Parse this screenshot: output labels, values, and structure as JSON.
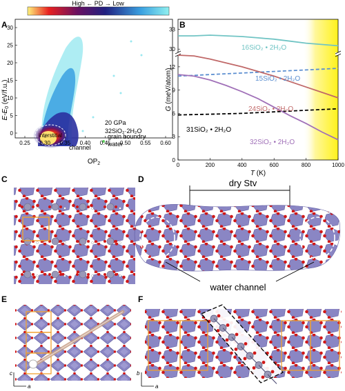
{
  "panels": {
    "A": {
      "label": "A",
      "colorbar_label": "High ← PD → Low",
      "x_label": "OP",
      "x_label_sub": "2",
      "y_label": "E-E",
      "y_label_sub": "0",
      "y_label_unit": " (eV/f.u.)",
      "x_ticks": [
        "0.25",
        "0.30",
        "0.35",
        "0.40",
        "0.45",
        "0.50",
        "0.55",
        "0.60"
      ],
      "y_ticks": [
        "0",
        "5",
        "10",
        "15",
        "20",
        "25",
        "30"
      ],
      "annotation_pressure": "20 GPa",
      "annotation_formula": "32SiO₂·2H₂O",
      "annotation_interstitial": "interstitial",
      "annotation_channel": "channel",
      "annotation_grain_1": "grain boundry",
      "annotation_grain_2": "water"
    },
    "B": {
      "label": "B"
    },
    "C": {
      "label": "C"
    },
    "D": {
      "label": "D",
      "top_label": "dry Stv",
      "bottom_label": "water channel"
    },
    "E": {
      "label": "E",
      "axis_c": "c",
      "axis_a": "a"
    },
    "F": {
      "label": "F",
      "axis_b": "b",
      "axis_a": "a"
    }
  },
  "colors": {
    "polyhedron": "#8a86c4",
    "oxygen": "#d01818",
    "silicon": "#9a98b8",
    "cell": "#f0a030",
    "highlight": "#fff57a"
  },
  "chart_data": [
    {
      "type": "line",
      "panel": "B",
      "xlabel": "T (K)",
      "ylabel": "G (meV/atom)",
      "x_ticks": [
        0,
        200,
        400,
        600,
        800,
        1000
      ],
      "y_ticks_lower": [
        0,
        3,
        6,
        9,
        12
      ],
      "y_ticks_upper": [
        30,
        33
      ],
      "xlim": [
        0,
        1000
      ],
      "ylim_lower": [
        0,
        13.5
      ],
      "ylim_upper": [
        29.5,
        34.5
      ],
      "shaded_region_x": [
        780,
        1000
      ],
      "series": [
        {
          "name": "16SiO₂·2H₂O",
          "color": "#70c4c4",
          "dash": false,
          "x": [
            0,
            100,
            200,
            300,
            400,
            500,
            600,
            700,
            800,
            900,
            1000
          ],
          "y": [
            32.0,
            32.0,
            32.1,
            32.0,
            31.9,
            31.7,
            31.5,
            31.2,
            30.9,
            30.7,
            30.5
          ]
        },
        {
          "name": "15SiO₂·2H₂O",
          "color": "#5b8ed0",
          "dash": true,
          "x": [
            0,
            200,
            400,
            600,
            800,
            1000
          ],
          "y": [
            10.8,
            11.0,
            11.2,
            11.4,
            11.6,
            11.8
          ]
        },
        {
          "name": "24SiO₂·2H₂O",
          "color": "#c06868",
          "dash": false,
          "x": [
            0,
            100,
            200,
            300,
            400,
            500,
            600,
            700,
            800,
            900,
            1000
          ],
          "y": [
            13.5,
            13.4,
            13.0,
            12.5,
            12.0,
            11.4,
            10.8,
            10.1,
            9.4,
            8.7,
            8.0
          ]
        },
        {
          "name": "31SiO₂·2H₂O",
          "color": "#000000",
          "dash": true,
          "x": [
            0,
            200,
            400,
            600,
            800,
            1000
          ],
          "y": [
            5.8,
            5.9,
            6.0,
            6.2,
            6.4,
            6.6
          ]
        },
        {
          "name": "32SiO₂·2H₂O",
          "color": "#a070b8",
          "dash": false,
          "x": [
            0,
            100,
            200,
            300,
            400,
            500,
            600,
            700,
            800,
            900,
            1000
          ],
          "y": [
            11.0,
            10.8,
            10.3,
            9.6,
            8.8,
            7.9,
            6.8,
            5.7,
            4.7,
            3.6,
            2.6
          ]
        }
      ],
      "series_labels": [
        {
          "name": "16SiO₂ • 2H₂O",
          "color": "#70c4c4"
        },
        {
          "name": "15SiO₂ • 2H₂O",
          "color": "#5b8ed0"
        },
        {
          "name": "24SiO₂ • 2H₂O",
          "color": "#c06868"
        },
        {
          "name": "31SiO₂ • 2H₂O",
          "color": "#000000"
        },
        {
          "name": "32SiO₂ • 2H₂O",
          "color": "#a070b8"
        }
      ]
    }
  ]
}
